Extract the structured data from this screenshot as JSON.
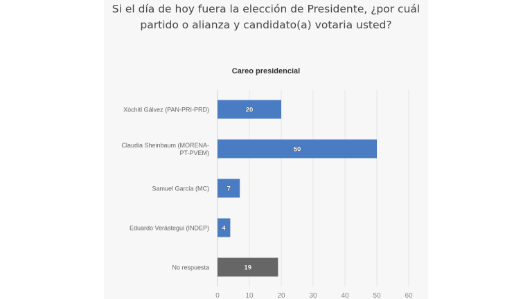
{
  "chart_data": {
    "type": "bar",
    "orientation": "horizontal",
    "title": "Si el día de hoy fuera la elección de Presidente, ¿por cuál partido o alianza y candidato(a) votaria usted?",
    "subtitle": "Careo presidencial",
    "categories": [
      "Xóchitl Gálvez (PAN-PRI-PRD)",
      "Claudia Sheinbaum (MORENA-PT-PVEM)",
      "Samuel García (MC)",
      "Eduardo Verástegui (INDEP)",
      "No respuesta"
    ],
    "category_lines": [
      [
        "Xóchitl Gálvez (PAN-PRI-PRD)"
      ],
      [
        "Claudia Sheinbaum (MORENA-",
        "PT-PVEM)"
      ],
      [
        "Samuel García (MC)"
      ],
      [
        "Eduardo Verástegui (INDEP)"
      ],
      [
        "No respuesta"
      ]
    ],
    "values": [
      20,
      50,
      7,
      4,
      19
    ],
    "bar_colors": [
      "#4a7cc4",
      "#4a7cc4",
      "#4a7cc4",
      "#4a7cc4",
      "#666666"
    ],
    "xlim": [
      0,
      60
    ],
    "xticks": [
      0,
      10,
      20,
      30,
      40,
      50,
      60
    ],
    "grid": true,
    "xlabel": "",
    "ylabel": ""
  }
}
